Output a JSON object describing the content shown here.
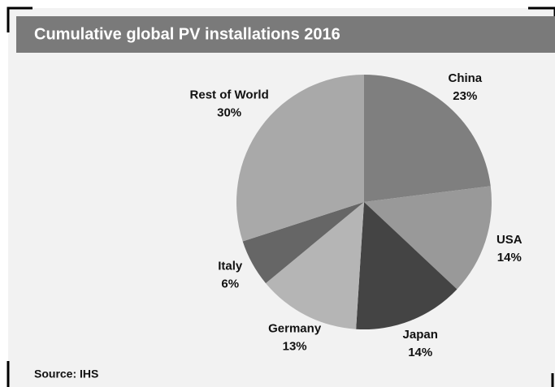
{
  "chart_data": {
    "type": "pie",
    "title": "Cumulative global PV installations 2016",
    "categories": [
      "China",
      "USA",
      "Japan",
      "Germany",
      "Italy",
      "Rest of World"
    ],
    "values": [
      23,
      14,
      14,
      13,
      6,
      30
    ],
    "value_labels": [
      "23%",
      "14%",
      "14%",
      "13%",
      "6%",
      "30%"
    ],
    "colors": [
      "#7f7f7f",
      "#999999",
      "#444444",
      "#b5b5b5",
      "#666666",
      "#a9a9a9"
    ],
    "source": "Source: IHS"
  }
}
